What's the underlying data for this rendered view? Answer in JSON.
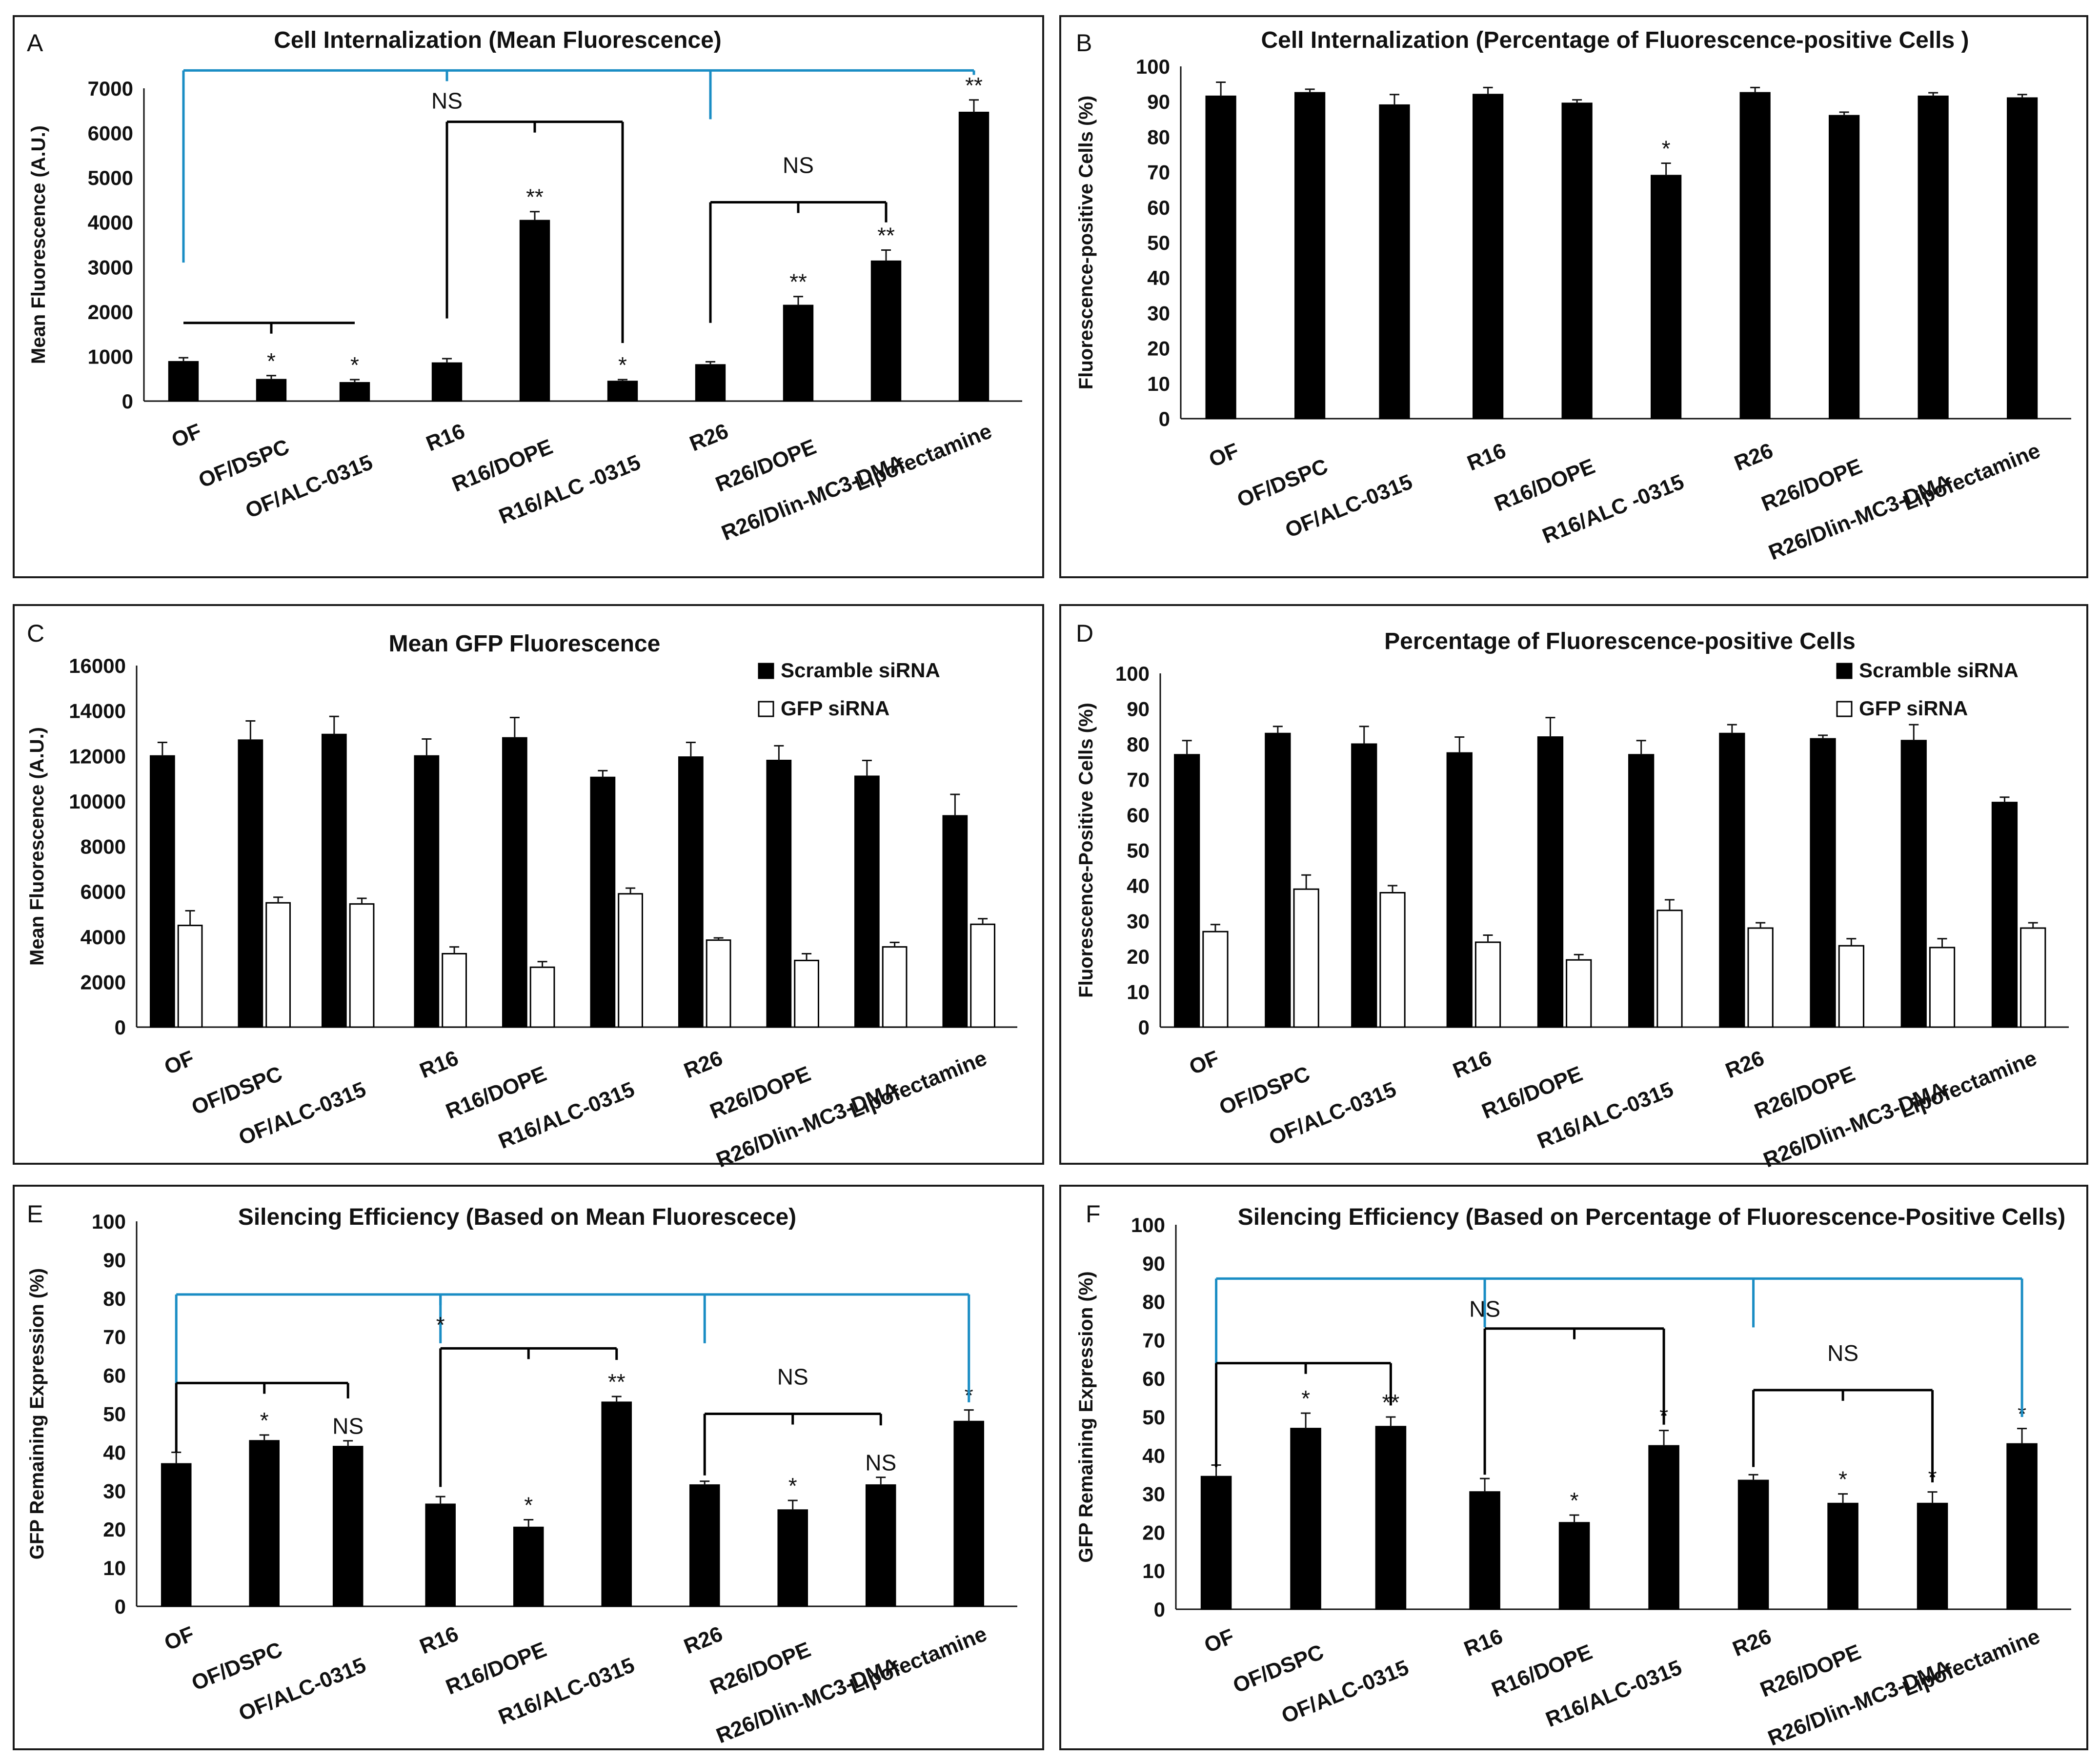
{
  "figure": {
    "background": "#ffffff",
    "bar_color": "#000000",
    "significance_color": "#1a8dc4"
  },
  "chart_data": [
    {
      "panel": "A",
      "type": "bar",
      "title": "Cell Internalization (Mean Fluorescence)",
      "ylabel": "Mean Fluorescence (A.U.)",
      "ylim": [
        0,
        7000
      ],
      "yticks": [
        0,
        1000,
        2000,
        3000,
        4000,
        5000,
        6000,
        7000
      ],
      "categories": [
        "OF",
        "OF/DSPC",
        "OF/ALC-0315",
        "R16",
        "R16/DOPE",
        "R16/ALC -0315",
        "R26",
        "R26/DOPE",
        "R26/Dlin-MC3-DMA",
        "Lipofectamine"
      ],
      "series": [
        {
          "name": "",
          "fill": "#000000",
          "values": [
            880,
            480,
            410,
            850,
            4040,
            440,
            810,
            2140,
            3130,
            6460
          ],
          "errors": [
            90,
            90,
            70,
            100,
            200,
            40,
            70,
            200,
            250,
            280
          ],
          "sig": [
            "",
            "*",
            "*",
            "",
            "**",
            "*",
            "",
            "**",
            "**",
            "**"
          ]
        }
      ],
      "brackets": [
        {
          "from": 0,
          "to": 9,
          "level": 7400,
          "color": "blue",
          "drops": [
            0,
            6,
            9
          ],
          "mid": 3,
          "label": "NS",
          "label_pos": "mid",
          "stem": 3100,
          "right_stem": 7300,
          "extra_stems": []
        },
        {
          "from": 0,
          "to": 2,
          "level": 1750,
          "color": "black",
          "drops": [],
          "mid": 1,
          "label": "",
          "label_pos": "",
          "stem": 1750,
          "right_stem": 1750,
          "extra_stems": []
        },
        {
          "from": 3,
          "to": 5,
          "level": 6250,
          "color": "black",
          "drops": [],
          "mid": 4,
          "label": "",
          "label_pos": "",
          "stem": 1850,
          "right_stem": 1300,
          "extra_stems": []
        },
        {
          "from": 6,
          "to": 8,
          "level": 4450,
          "color": "black",
          "drops": [],
          "mid": 7,
          "label": "NS",
          "label_pos": "above",
          "stem": 1750,
          "right_stem": 4000,
          "extra_stems": []
        }
      ],
      "legend": []
    },
    {
      "panel": "B",
      "type": "bar",
      "title": "Cell Internalization (Percentage of Fluorescence-positive Cells )",
      "ylabel": "Fluorescence-positive Cells (%)",
      "ylim": [
        0,
        100
      ],
      "yticks": [
        0,
        10,
        20,
        30,
        40,
        50,
        60,
        70,
        80,
        90,
        100
      ],
      "categories": [
        "OF",
        "OF/DSPC",
        "OF/ALC-0315",
        "R16",
        "R16/DOPE",
        "R16/ALC -0315",
        "R26",
        "R26/DOPE",
        "R26/Dlin-MC3-DMA",
        "Lipofectamine"
      ],
      "series": [
        {
          "name": "",
          "fill": "#000000",
          "values": [
            91.5,
            92.5,
            89.0,
            92.0,
            89.5,
            69.0,
            92.5,
            86.0,
            91.5,
            91.0
          ],
          "errors": [
            4.0,
            1.0,
            3.0,
            2.0,
            1.0,
            3.5,
            1.5,
            1.0,
            1.0,
            1.0
          ],
          "sig": [
            "",
            "",
            "",
            "",
            "",
            "*",
            "",
            "",
            "",
            ""
          ]
        }
      ],
      "brackets": [],
      "legend": []
    },
    {
      "panel": "C",
      "type": "bar",
      "title": "Mean GFP Fluorescence",
      "ylabel": "Mean Fluorescence (A.U.)",
      "ylim": [
        0,
        16000
      ],
      "yticks": [
        0,
        2000,
        4000,
        6000,
        8000,
        10000,
        12000,
        14000,
        16000
      ],
      "categories": [
        "OF",
        "OF/DSPC",
        "OF/ALC-0315",
        "R16",
        "R16/DOPE",
        "R16/ALC-0315",
        "R26",
        "R26/DOPE",
        "R26/Dlin-MC3-DMA",
        "Lipofectamine"
      ],
      "series": [
        {
          "name": "Scramble siRNA",
          "fill": "#000000",
          "values": [
            12000,
            12700,
            12950,
            12000,
            12800,
            11050,
            11950,
            11800,
            11100,
            9350
          ],
          "errors": [
            600,
            850,
            800,
            750,
            900,
            300,
            650,
            650,
            700,
            950
          ],
          "sig": []
        },
        {
          "name": "GFP siRNA",
          "fill": "#ffffff",
          "values": [
            4500,
            5500,
            5450,
            3250,
            2650,
            5900,
            3850,
            2950,
            3550,
            4550
          ],
          "errors": [
            650,
            250,
            250,
            300,
            250,
            250,
            100,
            300,
            200,
            250
          ],
          "sig": []
        }
      ],
      "brackets": [],
      "legend": [
        "Scramble siRNA",
        "GFP siRNA"
      ]
    },
    {
      "panel": "D",
      "type": "bar",
      "title": "Percentage of Fluorescence-positive Cells",
      "ylabel": "Fluorescence-Positive Cells (%)",
      "ylim": [
        0,
        100
      ],
      "yticks": [
        0,
        10,
        20,
        30,
        40,
        50,
        60,
        70,
        80,
        90,
        100
      ],
      "categories": [
        "OF",
        "OF/DSPC",
        "OF/ALC-0315",
        "R16",
        "R16/DOPE",
        "R16/ALC-0315",
        "R26",
        "R26/DOPE",
        "R26/Dlin-MC3-DMA",
        "Lipofectamine"
      ],
      "series": [
        {
          "name": "Scramble siRNA",
          "fill": "#000000",
          "values": [
            77.0,
            83.0,
            80.0,
            77.5,
            82.0,
            77.0,
            83.0,
            81.5,
            81.0,
            63.5
          ],
          "errors": [
            4.0,
            2.0,
            5.0,
            4.5,
            5.5,
            4.0,
            2.5,
            1.0,
            4.5,
            1.5
          ],
          "sig": []
        },
        {
          "name": "GFP siRNA",
          "fill": "#ffffff",
          "values": [
            27.0,
            39.0,
            38.0,
            24.0,
            19.0,
            33.0,
            28.0,
            23.0,
            22.5,
            28.0
          ],
          "errors": [
            2.0,
            4.0,
            2.0,
            2.0,
            1.5,
            3.0,
            1.5,
            2.0,
            2.5,
            1.5
          ],
          "sig": []
        }
      ],
      "brackets": [],
      "legend": [
        "Scramble siRNA",
        "GFP siRNA"
      ]
    },
    {
      "panel": "E",
      "type": "bar",
      "title": "Silencing Efficiency (Based on Mean Fluorescece)",
      "ylabel": "GFP Remaining Expression (%)",
      "ylim": [
        0,
        100
      ],
      "yticks": [
        0,
        10,
        20,
        30,
        40,
        50,
        60,
        70,
        80,
        90,
        100
      ],
      "categories": [
        "OF",
        "OF/DSPC",
        "OF/ALC-0315",
        "R16",
        "R16/DOPE",
        "R16/ALC-0315",
        "R26",
        "R26/DOPE",
        "R26/Dlin-MC3-DMA",
        "Lipofectamine"
      ],
      "series": [
        {
          "name": "",
          "fill": "#000000",
          "values": [
            37.0,
            43.0,
            41.5,
            26.5,
            20.5,
            53.0,
            31.5,
            25.0,
            31.5,
            48.0
          ],
          "errors": [
            3.0,
            1.5,
            1.5,
            2.0,
            2.0,
            1.5,
            1.0,
            2.5,
            2.0,
            3.0
          ],
          "sig": [
            "",
            "*",
            "NS",
            "",
            "*",
            "**",
            "",
            "*",
            "NS",
            "*"
          ]
        }
      ],
      "brackets": [
        {
          "from": 0,
          "to": 9,
          "level": 81,
          "color": "blue",
          "drops": [
            0,
            3,
            6,
            9
          ],
          "mid": 3,
          "label": "*",
          "label_pos": "mid",
          "stem": 58,
          "right_stem": 53,
          "extra_stems": []
        },
        {
          "from": 0,
          "to": 2,
          "level": 58,
          "color": "black",
          "drops": [],
          "mid": 1,
          "label": "",
          "label_pos": "",
          "stem": 40,
          "right_stem": 54,
          "extra_stems": []
        },
        {
          "from": 3,
          "to": 5,
          "level": 67,
          "color": "black",
          "drops": [],
          "mid": 4,
          "label": "",
          "label_pos": "",
          "stem": 31,
          "right_stem": 64,
          "extra_stems": []
        },
        {
          "from": 6,
          "to": 8,
          "level": 50,
          "color": "black",
          "drops": [],
          "mid": 7,
          "label": "NS",
          "label_pos": "above",
          "stem": 34,
          "right_stem": 47,
          "extra_stems": []
        }
      ],
      "legend": []
    },
    {
      "panel": "F",
      "type": "bar",
      "title": "Silencing Efficiency (Based on Percentage of Fluorescence-Positive Cells)",
      "ylabel": "GFP Remaining Expression (%)",
      "ylim": [
        0,
        100
      ],
      "yticks": [
        0,
        10,
        20,
        30,
        40,
        50,
        60,
        70,
        80,
        90,
        100
      ],
      "categories": [
        "OF",
        "OF/DSPC",
        "OF/ALC-0315",
        "R16",
        "R16/DOPE",
        "R16/ALC-0315",
        "R26",
        "R26/DOPE",
        "R26/Dlin-MC3-DMA",
        "Lipofectamine"
      ],
      "series": [
        {
          "name": "",
          "fill": "#000000",
          "values": [
            34.5,
            47.0,
            47.5,
            30.5,
            22.5,
            42.5,
            33.5,
            27.5,
            27.5,
            43.0
          ],
          "errors": [
            3.0,
            4.0,
            2.5,
            3.5,
            2.0,
            4.0,
            1.5,
            2.5,
            3.0,
            4.0
          ],
          "sig": [
            "",
            "*",
            "**",
            "",
            "*",
            "*",
            "",
            "*",
            "*",
            "*"
          ]
        }
      ],
      "brackets": [
        {
          "from": 0,
          "to": 9,
          "level": 86,
          "color": "blue",
          "drops": [
            0,
            3,
            6,
            9
          ],
          "mid": 3,
          "label": "NS",
          "label_pos": "mid",
          "stem": 64,
          "right_stem": 50,
          "extra_stems": []
        },
        {
          "from": 0,
          "to": 2,
          "level": 64,
          "color": "black",
          "drops": [],
          "mid": 1,
          "label": "",
          "label_pos": "",
          "stem": 37,
          "right_stem": 53,
          "extra_stems": []
        },
        {
          "from": 3,
          "to": 5,
          "level": 73,
          "color": "black",
          "drops": [],
          "mid": 4,
          "label": "",
          "label_pos": "",
          "stem": 35,
          "right_stem": 48,
          "extra_stems": []
        },
        {
          "from": 6,
          "to": 8,
          "level": 57,
          "color": "black",
          "drops": [],
          "mid": 7,
          "label": "NS",
          "label_pos": "above",
          "stem": 37,
          "right_stem": 33,
          "extra_stems": []
        }
      ],
      "legend": []
    }
  ]
}
